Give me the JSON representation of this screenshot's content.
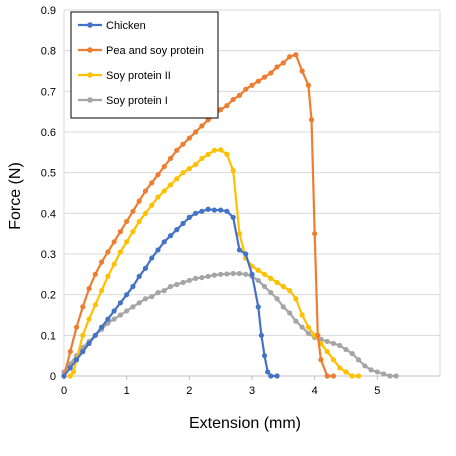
{
  "chart_data": {
    "type": "line",
    "xlabel": "Extension (mm)",
    "ylabel": "Force (N)",
    "xlim": [
      0,
      6
    ],
    "ylim": [
      0,
      0.9
    ],
    "x_ticks": [
      "0",
      "1",
      "2",
      "3",
      "4",
      "5"
    ],
    "y_ticks": [
      "0",
      "0.1",
      "0.2",
      "0.3",
      "0.4",
      "0.5",
      "0.6",
      "0.7",
      "0.8",
      "0.9"
    ],
    "grid": "horizontal",
    "legend_position": "top-left",
    "series": [
      {
        "name": "Chicken",
        "color": "#4472C4",
        "points": [
          [
            0,
            0
          ],
          [
            0.1,
            0.02
          ],
          [
            0.2,
            0.04
          ],
          [
            0.3,
            0.06
          ],
          [
            0.4,
            0.08
          ],
          [
            0.5,
            0.1
          ],
          [
            0.6,
            0.12
          ],
          [
            0.7,
            0.14
          ],
          [
            0.8,
            0.16
          ],
          [
            0.9,
            0.18
          ],
          [
            1.0,
            0.2
          ],
          [
            1.1,
            0.22
          ],
          [
            1.2,
            0.245
          ],
          [
            1.3,
            0.265
          ],
          [
            1.4,
            0.29
          ],
          [
            1.5,
            0.31
          ],
          [
            1.6,
            0.33
          ],
          [
            1.7,
            0.345
          ],
          [
            1.8,
            0.36
          ],
          [
            1.9,
            0.375
          ],
          [
            2.0,
            0.39
          ],
          [
            2.1,
            0.4
          ],
          [
            2.2,
            0.405
          ],
          [
            2.3,
            0.41
          ],
          [
            2.4,
            0.408
          ],
          [
            2.5,
            0.408
          ],
          [
            2.6,
            0.405
          ],
          [
            2.7,
            0.39
          ],
          [
            2.8,
            0.31
          ],
          [
            2.9,
            0.3
          ],
          [
            3.0,
            0.25
          ],
          [
            3.1,
            0.17
          ],
          [
            3.15,
            0.1
          ],
          [
            3.2,
            0.05
          ],
          [
            3.25,
            0.01
          ],
          [
            3.3,
            0.0
          ],
          [
            3.4,
            0.0
          ]
        ]
      },
      {
        "name": "Pea and soy protein",
        "color": "#ED7D31",
        "points": [
          [
            0,
            0
          ],
          [
            0.1,
            0.06
          ],
          [
            0.2,
            0.12
          ],
          [
            0.3,
            0.17
          ],
          [
            0.4,
            0.215
          ],
          [
            0.5,
            0.25
          ],
          [
            0.6,
            0.28
          ],
          [
            0.7,
            0.305
          ],
          [
            0.8,
            0.33
          ],
          [
            0.9,
            0.355
          ],
          [
            1.0,
            0.38
          ],
          [
            1.1,
            0.405
          ],
          [
            1.2,
            0.43
          ],
          [
            1.3,
            0.455
          ],
          [
            1.4,
            0.475
          ],
          [
            1.5,
            0.495
          ],
          [
            1.6,
            0.515
          ],
          [
            1.7,
            0.535
          ],
          [
            1.8,
            0.555
          ],
          [
            1.9,
            0.57
          ],
          [
            2.0,
            0.585
          ],
          [
            2.1,
            0.6
          ],
          [
            2.2,
            0.615
          ],
          [
            2.3,
            0.63
          ],
          [
            2.4,
            0.64
          ],
          [
            2.5,
            0.655
          ],
          [
            2.6,
            0.665
          ],
          [
            2.7,
            0.68
          ],
          [
            2.8,
            0.69
          ],
          [
            2.9,
            0.705
          ],
          [
            3.0,
            0.715
          ],
          [
            3.1,
            0.725
          ],
          [
            3.2,
            0.735
          ],
          [
            3.3,
            0.745
          ],
          [
            3.4,
            0.76
          ],
          [
            3.5,
            0.77
          ],
          [
            3.6,
            0.785
          ],
          [
            3.7,
            0.79
          ],
          [
            3.8,
            0.75
          ],
          [
            3.9,
            0.715
          ],
          [
            3.95,
            0.63
          ],
          [
            4.0,
            0.35
          ],
          [
            4.05,
            0.1
          ],
          [
            4.1,
            0.04
          ],
          [
            4.2,
            0.0
          ],
          [
            4.3,
            0.0
          ]
        ]
      },
      {
        "name": "Soy protein II",
        "color": "#FFC000",
        "points": [
          [
            0.1,
            0
          ],
          [
            0.15,
            0.01
          ],
          [
            0.2,
            0.04
          ],
          [
            0.3,
            0.1
          ],
          [
            0.4,
            0.14
          ],
          [
            0.5,
            0.175
          ],
          [
            0.6,
            0.21
          ],
          [
            0.7,
            0.245
          ],
          [
            0.8,
            0.275
          ],
          [
            0.9,
            0.305
          ],
          [
            1.0,
            0.33
          ],
          [
            1.1,
            0.355
          ],
          [
            1.2,
            0.38
          ],
          [
            1.3,
            0.4
          ],
          [
            1.4,
            0.42
          ],
          [
            1.5,
            0.44
          ],
          [
            1.6,
            0.455
          ],
          [
            1.7,
            0.47
          ],
          [
            1.8,
            0.485
          ],
          [
            1.9,
            0.5
          ],
          [
            2.0,
            0.51
          ],
          [
            2.1,
            0.52
          ],
          [
            2.2,
            0.535
          ],
          [
            2.3,
            0.545
          ],
          [
            2.4,
            0.555
          ],
          [
            2.5,
            0.556
          ],
          [
            2.6,
            0.545
          ],
          [
            2.7,
            0.505
          ],
          [
            2.8,
            0.35
          ],
          [
            2.9,
            0.29
          ],
          [
            3.0,
            0.27
          ],
          [
            3.1,
            0.26
          ],
          [
            3.2,
            0.25
          ],
          [
            3.3,
            0.24
          ],
          [
            3.4,
            0.23
          ],
          [
            3.5,
            0.22
          ],
          [
            3.6,
            0.21
          ],
          [
            3.7,
            0.19
          ],
          [
            3.8,
            0.15
          ],
          [
            3.9,
            0.12
          ],
          [
            4.0,
            0.1
          ],
          [
            4.1,
            0.08
          ],
          [
            4.2,
            0.06
          ],
          [
            4.3,
            0.04
          ],
          [
            4.4,
            0.02
          ],
          [
            4.5,
            0.01
          ],
          [
            4.6,
            0.0
          ],
          [
            4.7,
            0.0
          ]
        ]
      },
      {
        "name": "Soy protein I",
        "color": "#A5A5A5",
        "points": [
          [
            0,
            0.01
          ],
          [
            0.1,
            0.03
          ],
          [
            0.2,
            0.05
          ],
          [
            0.3,
            0.07
          ],
          [
            0.4,
            0.085
          ],
          [
            0.5,
            0.1
          ],
          [
            0.6,
            0.115
          ],
          [
            0.7,
            0.13
          ],
          [
            0.8,
            0.14
          ],
          [
            0.9,
            0.15
          ],
          [
            1.0,
            0.16
          ],
          [
            1.1,
            0.17
          ],
          [
            1.2,
            0.18
          ],
          [
            1.3,
            0.19
          ],
          [
            1.4,
            0.195
          ],
          [
            1.5,
            0.205
          ],
          [
            1.6,
            0.21
          ],
          [
            1.7,
            0.22
          ],
          [
            1.8,
            0.225
          ],
          [
            1.9,
            0.23
          ],
          [
            2.0,
            0.235
          ],
          [
            2.1,
            0.24
          ],
          [
            2.2,
            0.242
          ],
          [
            2.3,
            0.245
          ],
          [
            2.4,
            0.248
          ],
          [
            2.5,
            0.25
          ],
          [
            2.6,
            0.251
          ],
          [
            2.7,
            0.252
          ],
          [
            2.8,
            0.252
          ],
          [
            2.9,
            0.25
          ],
          [
            3.0,
            0.245
          ],
          [
            3.1,
            0.235
          ],
          [
            3.2,
            0.22
          ],
          [
            3.3,
            0.205
          ],
          [
            3.4,
            0.19
          ],
          [
            3.5,
            0.17
          ],
          [
            3.6,
            0.155
          ],
          [
            3.7,
            0.135
          ],
          [
            3.8,
            0.12
          ],
          [
            3.9,
            0.105
          ],
          [
            4.0,
            0.095
          ],
          [
            4.1,
            0.09
          ],
          [
            4.2,
            0.085
          ],
          [
            4.3,
            0.08
          ],
          [
            4.4,
            0.075
          ],
          [
            4.5,
            0.065
          ],
          [
            4.6,
            0.055
          ],
          [
            4.7,
            0.04
          ],
          [
            4.8,
            0.025
          ],
          [
            4.9,
            0.015
          ],
          [
            5.0,
            0.01
          ],
          [
            5.1,
            0.005
          ],
          [
            5.2,
            0.0
          ],
          [
            5.3,
            0.0
          ]
        ]
      }
    ]
  }
}
